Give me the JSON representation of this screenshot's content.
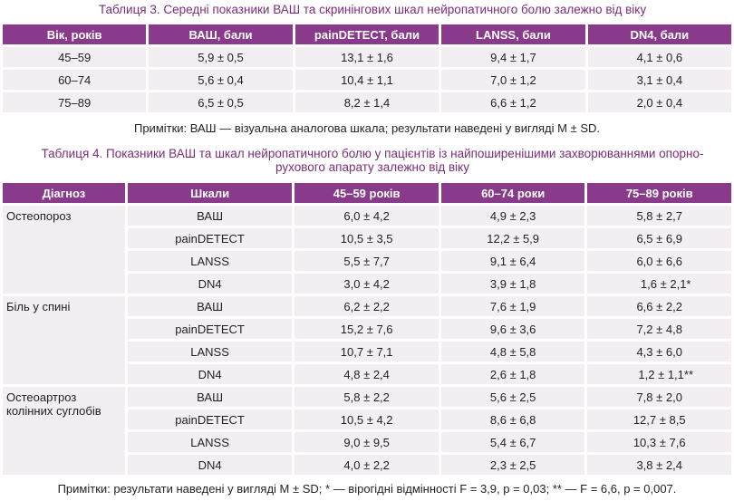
{
  "table3": {
    "caption": "Таблиця 3.  Середні показники ВАШ та скринінгових шкал нейропатичного болю залежно від віку",
    "headers": [
      "Вік, років",
      "ВАШ, бали",
      "painDETECT, бали",
      "LANSS, бали",
      "DN4, бали"
    ],
    "rows": [
      [
        "45–59",
        "5,9 ± 0,5",
        "13,1 ± 1,6",
        "9,4 ± 1,7",
        "4,1 ± 0,6"
      ],
      [
        "60–74",
        "5,6 ± 0,4",
        "10,4 ± 1,1",
        "7,0 ± 1,2",
        "3,1 ± 0,4"
      ],
      [
        "75–89",
        "6,5 ± 0,5",
        "8,2 ± 1,4",
        "6,6 ± 1,2",
        "2,0 ± 0,4"
      ]
    ],
    "note": "Примітки:  ВАШ — візуальна аналогова шкала; результати наведені у вигляді M ± SD."
  },
  "table4": {
    "caption_line1": "Таблиця 4.  Показники ВАШ та шкал нейропатичного болю у пацієнтів із найпоширенішими захворюваннями опорно-",
    "caption_line2": "рухового апарату залежно від віку",
    "headers": [
      "Діагноз",
      "Шкали",
      "45–59 років",
      "60–74 роки",
      "75–89 років"
    ],
    "groups": [
      {
        "diagnosis": "Остеопороз",
        "rows": [
          [
            "ВАШ",
            "6,0 ± 4,2",
            "4,9 ± 2,3",
            "5,8 ± 2,7"
          ],
          [
            "painDETECT",
            "10,5 ± 3,5",
            "12,2 ± 5,9",
            "6,5 ± 6,9"
          ],
          [
            "LANSS",
            "5,5 ± 7,7",
            "9,1 ± 6,4",
            "6,0 ± 6,6"
          ],
          [
            "DN4",
            "3,0 ± 4,2",
            "3,9 ± 1,8",
            "1,6 ± 2,1*"
          ]
        ]
      },
      {
        "diagnosis": "Біль у спині",
        "rows": [
          [
            "ВАШ",
            "6,2 ± 2,2",
            "7,6 ± 1,9",
            "6,6 ± 2,2"
          ],
          [
            "painDETECT",
            "15,2 ± 7,6",
            "9,6 ± 3,6",
            "7,2 ± 4,8"
          ],
          [
            "LANSS",
            "10,7 ± 7,1",
            "4,8 ± 5,8",
            "4,3 ± 6,0"
          ],
          [
            "DN4",
            "4,8 ± 2,4",
            "2,6 ± 1,8",
            "1,2 ± 1,1**"
          ]
        ]
      },
      {
        "diagnosis": "Остеоартроз колінних суглобів",
        "rows": [
          [
            "ВАШ",
            "5,8 ± 2,2",
            "5,6 ± 2,5",
            "7,8 ± 2,0"
          ],
          [
            "painDETECT",
            "10,5 ± 4,2",
            "8,6 ± 6,8",
            "12,7 ± 8,5"
          ],
          [
            "LANSS",
            "9,0 ± 9,5",
            "5,4 ± 6,7",
            "10,3 ± 7,6"
          ],
          [
            "DN4",
            "4,0 ± 2,2",
            "2,3 ± 2,5",
            "3,8 ± 2,4"
          ]
        ]
      }
    ],
    "note": "Примітки:  результати наведені у вигляді M ± SD; * — вірогідні відмінності F = 3,9, p = 0,03; ** — F = 6,6, p = 0,007."
  },
  "colors": {
    "header_bg": "#8a3a8a",
    "caption_text": "#7b2c7a",
    "cell_bg": "#f2eef2"
  }
}
